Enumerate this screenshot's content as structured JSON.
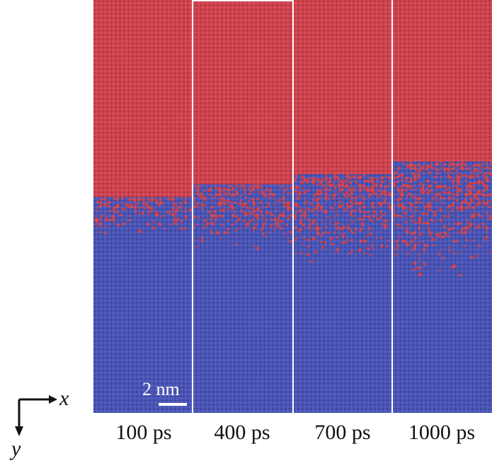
{
  "panels": [
    {
      "label": "100 ps",
      "interface_spread": 0.12
    },
    {
      "label": "400 ps",
      "interface_spread": 0.22
    },
    {
      "label": "700 ps",
      "interface_spread": 0.3
    },
    {
      "label": "1000 ps",
      "interface_spread": 0.4
    }
  ],
  "scalebar": {
    "label": "2 nm"
  },
  "axes": {
    "x_label": "x",
    "y_label": "y"
  },
  "colors": {
    "red_phase": "#d1434f",
    "blue_phase": "#4a55b8",
    "background": "#ffffff",
    "divider": "#ffffff"
  }
}
